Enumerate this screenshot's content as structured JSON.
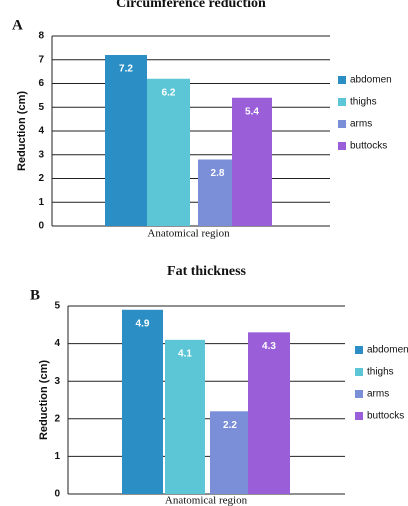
{
  "chart_data": [
    {
      "type": "bar",
      "panel_label": "A",
      "title": "Circumference reduction",
      "x_label": "Anatomical region",
      "y_label": "Reduction (cm)",
      "ylim": [
        0,
        8
      ],
      "yticks": [
        0,
        1,
        2,
        3,
        4,
        5,
        6,
        7,
        8
      ],
      "grid": true,
      "series": [
        {
          "name": "abdomen",
          "color": "#2b8fc6",
          "values": [
            7.2
          ]
        },
        {
          "name": "thighs",
          "color": "#5cc6d6",
          "values": [
            6.2
          ]
        },
        {
          "name": "arms",
          "color": "#7b8ed8",
          "values": [
            2.8
          ]
        },
        {
          "name": "buttocks",
          "color": "#9a5fd8",
          "values": [
            5.4
          ]
        }
      ]
    },
    {
      "type": "bar",
      "panel_label": "B",
      "title": "Fat thickness",
      "x_label": "Anatomical region",
      "y_label": "Reduction (cm)",
      "ylim": [
        0,
        5
      ],
      "yticks": [
        0,
        1,
        2,
        3,
        4,
        5
      ],
      "grid": true,
      "series": [
        {
          "name": "abdomen",
          "color": "#2b8fc6",
          "values": [
            4.9
          ]
        },
        {
          "name": "thighs",
          "color": "#5cc6d6",
          "values": [
            4.1
          ]
        },
        {
          "name": "arms",
          "color": "#7b8ed8",
          "values": [
            2.2
          ]
        },
        {
          "name": "buttocks",
          "color": "#9a5fd8",
          "values": [
            4.3
          ]
        }
      ]
    }
  ]
}
